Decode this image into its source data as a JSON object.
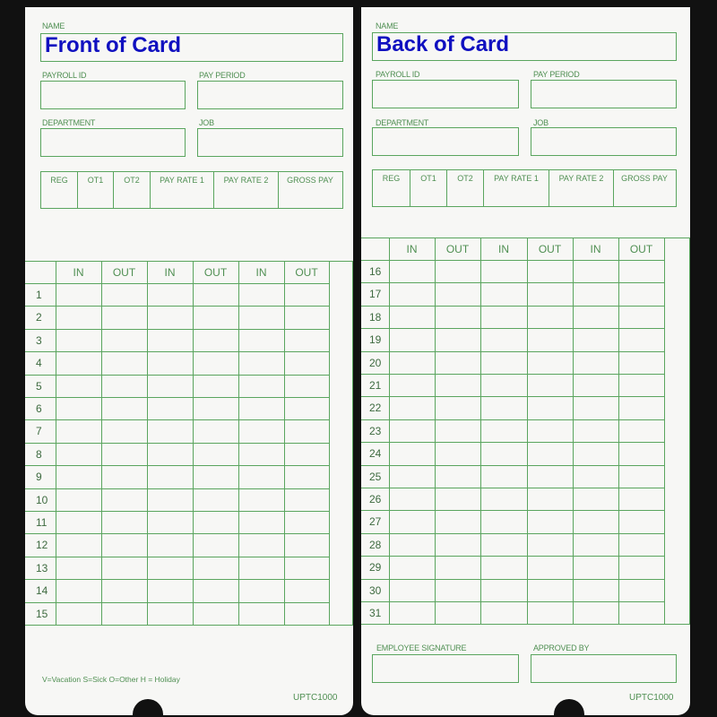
{
  "front": {
    "name_label": "NAME",
    "name_value": "Front of Card",
    "payroll_id_label": "PAYROLL ID",
    "pay_period_label": "PAY PERIOD",
    "department_label": "DEPARTMENT",
    "job_label": "JOB",
    "rate_columns": [
      "REG",
      "OT1",
      "OT2",
      "PAY RATE 1",
      "PAY RATE 2",
      "GROSS PAY"
    ],
    "grid_headers": [
      "IN",
      "OUT",
      "IN",
      "OUT",
      "IN",
      "OUT"
    ],
    "days": [
      "1",
      "2",
      "3",
      "4",
      "5",
      "6",
      "7",
      "8",
      "9",
      "10",
      "11",
      "12",
      "13",
      "14",
      "15"
    ],
    "legend": "V=Vacation   S=Sick   O=Other H  =  Holiday",
    "code": "UPTC1000"
  },
  "back": {
    "name_label": "NAME",
    "name_value": "Back of Card",
    "payroll_id_label": "PAYROLL ID",
    "pay_period_label": "PAY PERIOD",
    "department_label": "DEPARTMENT",
    "job_label": "JOB",
    "rate_columns": [
      "REG",
      "OT1",
      "OT2",
      "PAY RATE 1",
      "PAY RATE 2",
      "GROSS PAY"
    ],
    "grid_headers": [
      "IN",
      "OUT",
      "IN",
      "OUT",
      "IN",
      "OUT"
    ],
    "days": [
      "16",
      "17",
      "18",
      "19",
      "20",
      "21",
      "22",
      "23",
      "24",
      "25",
      "26",
      "27",
      "28",
      "29",
      "30",
      "31"
    ],
    "employee_signature_label": "EMPLOYEE SIGNATURE",
    "approved_by_label": "APPROVED BY",
    "code": "UPTC1000"
  },
  "colors": {
    "line": "#5aa55e",
    "title": "#1010c0",
    "background": "#111111"
  }
}
